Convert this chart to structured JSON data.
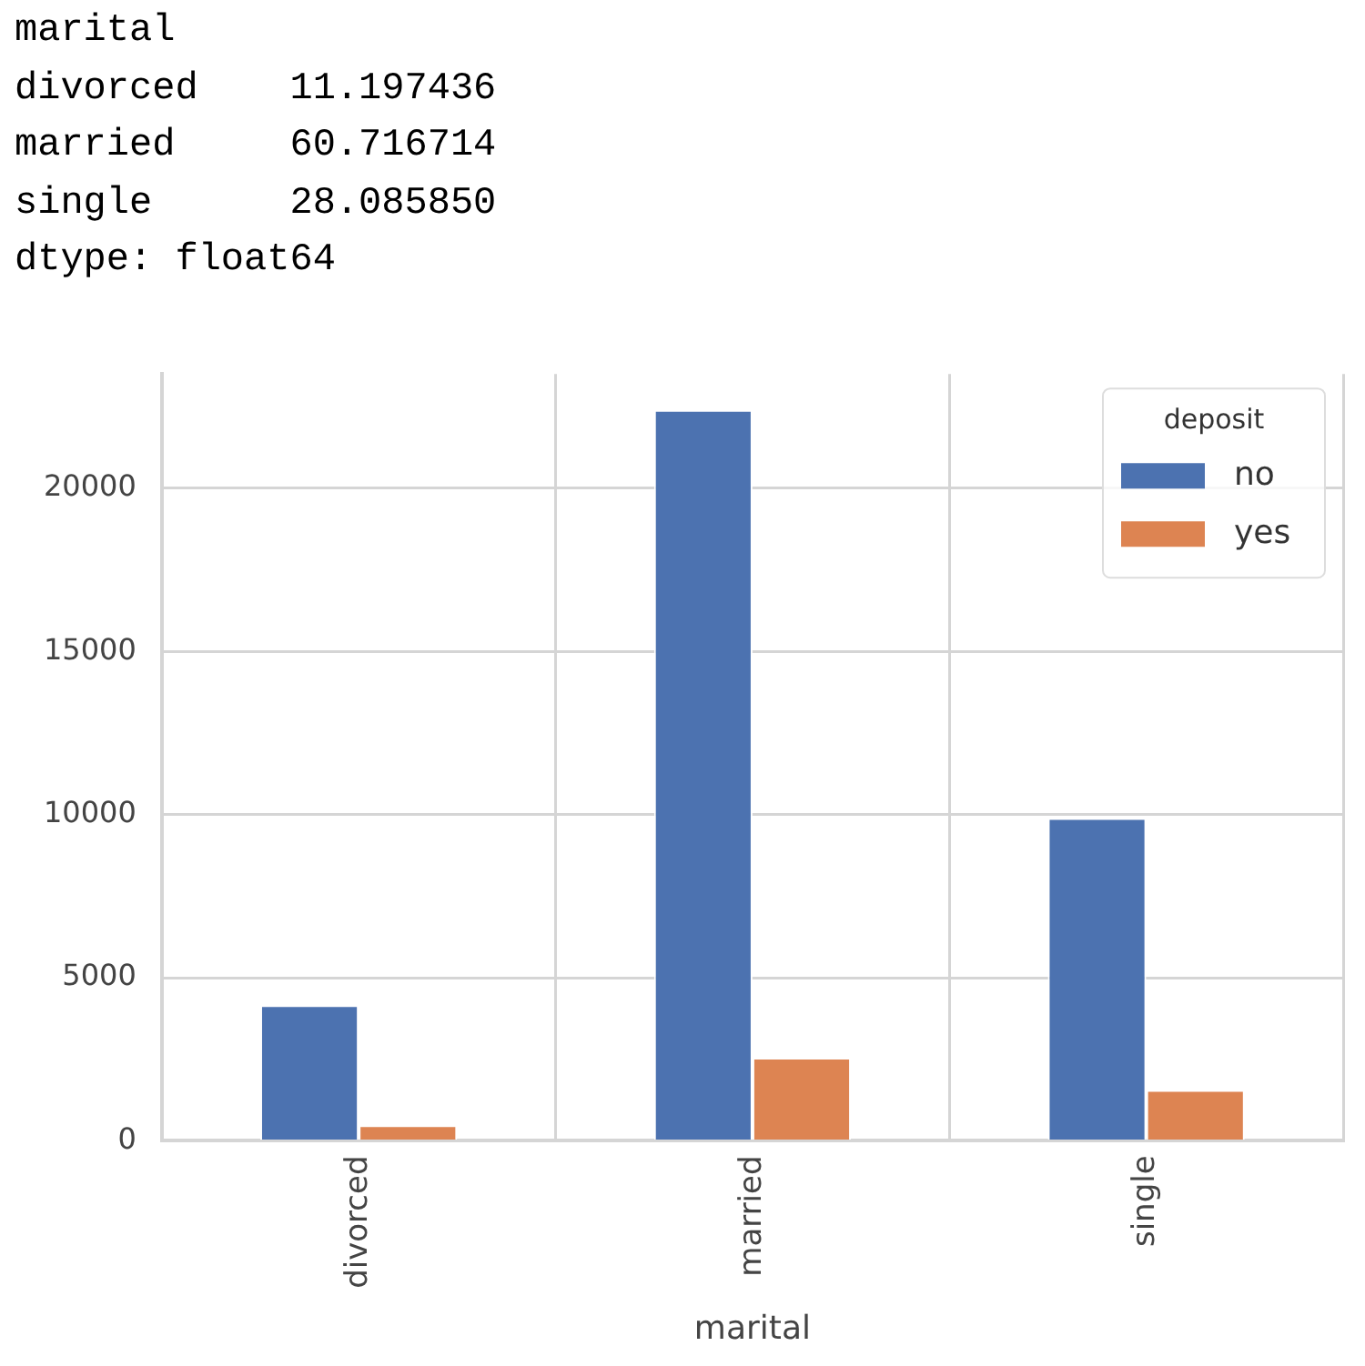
{
  "chart_data": {
    "type": "bar",
    "xlabel": "marital",
    "legend_title": "deposit",
    "legend": "top right",
    "grid": true,
    "annotations": [
      "marital",
      "divorced    11.197436",
      "married     60.716714",
      "single      28.085850",
      "dtype: float64"
    ],
    "categories": [
      "divorced",
      "married",
      "single"
    ],
    "series": [
      {
        "name": "no",
        "color": "#4c72b0",
        "values": [
          4160,
          22400,
          9890
        ]
      },
      {
        "name": "yes",
        "color": "#dd8452",
        "values": [
          480,
          2550,
          1560
        ]
      }
    ],
    "ylim": [
      0,
      23500
    ],
    "yticks": [
      0,
      5000,
      10000,
      15000,
      20000
    ]
  }
}
